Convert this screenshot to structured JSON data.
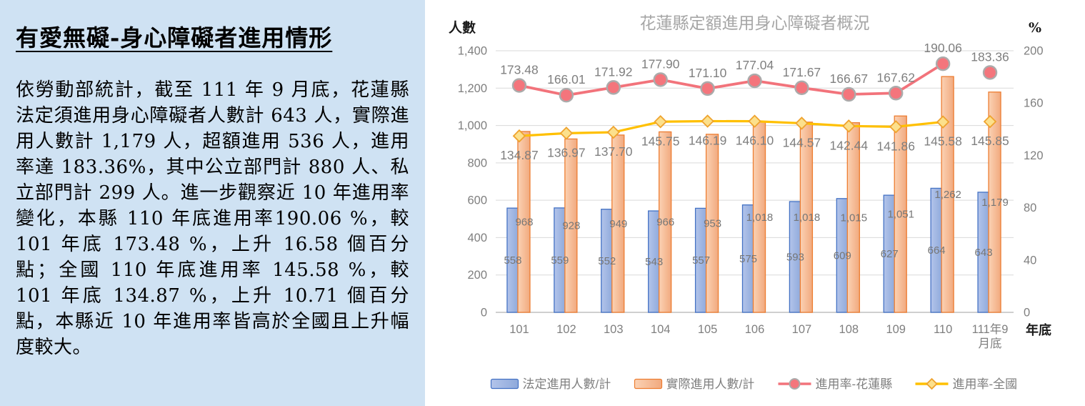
{
  "left_panel": {
    "background": "#CFE2F3",
    "title": "有愛無礙-身心障礙者進用情形",
    "body": "依勞動部統計，截至 111 年 9 月底，花蓮縣法定須進用身心障礙者人數計 643 人，實際進用人數計 1,179 人，超額進用 536 人，進用率達 183.36%，其中公立部門計 880 人、私立部門計 299 人。進一步觀察近 10 年進用率變化，本縣 110 年底進用率190.06 %，較 101 年底 173.48 %，上升 16.58 個百分點；全國 110 年底進用率 145.58 %，較 101 年底 134.87 %，上升 10.71 個百分點，本縣近 10 年進用率皆高於全國且上升幅度較大。"
  },
  "chart_data": {
    "type": "combo",
    "title": "花蓮縣定額進用身心障礙者概況",
    "title_color": "#A6A6A6",
    "left_axis": {
      "label": "人數",
      "min": 0,
      "max": 1400,
      "ticks": [
        "1,400",
        "1,200",
        "1,000",
        "800",
        "600",
        "400",
        "200",
        "0"
      ]
    },
    "right_axis": {
      "label": "%",
      "min": 0,
      "max": 200,
      "ticks": [
        "200",
        "160",
        "120",
        "80",
        "40",
        "0"
      ]
    },
    "x_axis": {
      "label": "年底",
      "categories": [
        "101",
        "102",
        "103",
        "104",
        "105",
        "106",
        "107",
        "108",
        "109",
        "110",
        "111年9\n月底"
      ]
    },
    "grid": true,
    "legend_position": "bottom",
    "series": [
      {
        "name": "法定進用人數/計",
        "type": "bar",
        "axis": "left",
        "fill_light": "#B3C4EA",
        "fill_dark": "#8EA9DB",
        "border": "#4472C4",
        "values": [
          558,
          559,
          552,
          543,
          557,
          575,
          593,
          609,
          627,
          664,
          643
        ],
        "labels": [
          "558",
          "559",
          "552",
          "543",
          "557",
          "575",
          "593",
          "609",
          "627",
          "664",
          "643"
        ]
      },
      {
        "name": "實際進用人數/計",
        "type": "bar",
        "axis": "left",
        "fill_light": "#FBD2B4",
        "fill_dark": "#F1A97E",
        "border": "#ED7D31",
        "values": [
          968,
          928,
          949,
          966,
          953,
          1018,
          1018,
          1015,
          1051,
          1262,
          1179
        ],
        "labels": [
          "968",
          "928",
          "949",
          "966",
          "953",
          "1,018",
          "1,018",
          "1,015",
          "1,051",
          "1,262",
          "1,179"
        ]
      },
      {
        "name": "進用率-花蓮縣",
        "type": "line",
        "axis": "right",
        "color": "#F2737B",
        "marker": "circle",
        "marker_fill": "#F4757C",
        "marker_stroke": "#ABABAB",
        "disconnect_last": true,
        "values": [
          173.48,
          166.01,
          171.92,
          177.9,
          171.1,
          177.04,
          171.67,
          166.67,
          167.62,
          190.06,
          183.36
        ],
        "labels": [
          "173.48",
          "166.01",
          "171.92",
          "177.90",
          "171.10",
          "177.04",
          "171.67",
          "166.67",
          "167.62",
          "190.06",
          "183.36"
        ]
      },
      {
        "name": "進用率-全國",
        "type": "line",
        "axis": "right",
        "color": "#FFC000",
        "marker": "diamond",
        "marker_fill": "#FCE08C",
        "marker_stroke": "#EFA32E",
        "disconnect_last": true,
        "values": [
          134.87,
          136.97,
          137.7,
          145.75,
          146.19,
          146.1,
          144.57,
          142.44,
          141.86,
          145.58,
          145.85
        ],
        "labels": [
          "134.87",
          "136.97",
          "137.70",
          "145.75",
          "146.19",
          "146.10",
          "144.57",
          "142.44",
          "141.86",
          "145.58",
          "145.85"
        ]
      }
    ]
  }
}
